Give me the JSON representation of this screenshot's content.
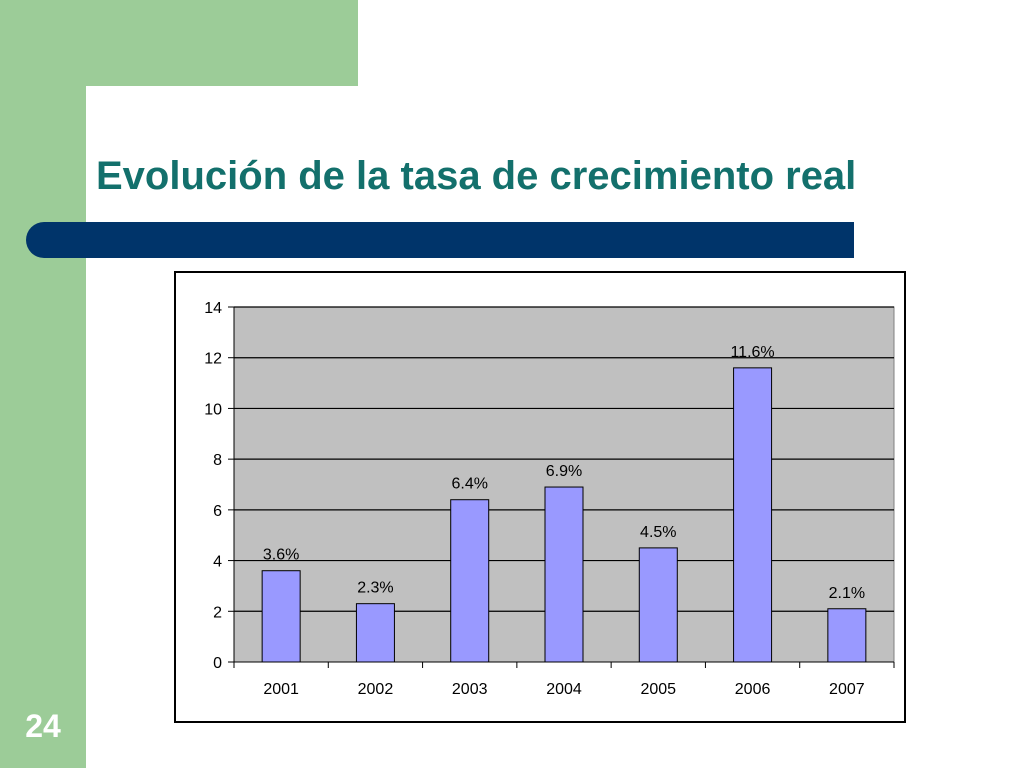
{
  "slide": {
    "title": "Evolución de la tasa de crecimiento real",
    "number": "24"
  },
  "chart_data": {
    "type": "bar",
    "categories": [
      "2001",
      "2002",
      "2003",
      "2004",
      "2005",
      "2006",
      "2007"
    ],
    "values": [
      3.6,
      2.3,
      6.4,
      6.9,
      4.5,
      11.6,
      2.1
    ],
    "data_labels": [
      "3.6%",
      "2.3%",
      "6.4%",
      "6.9%",
      "4.5%",
      "11.6%",
      "2.1%"
    ],
    "title": "",
    "xlabel": "",
    "ylabel": "",
    "ylim": [
      0,
      14
    ],
    "yticks": [
      0,
      2,
      4,
      6,
      8,
      10,
      12,
      14
    ],
    "grid": true,
    "legend": "none",
    "colors": {
      "bar_fill": "#9999ff",
      "bar_stroke": "#000000",
      "plot_background": "#c0c0c0",
      "gridline": "#000000"
    }
  },
  "colors": {
    "accent_green": "#9ccc98",
    "title_teal": "#13706c",
    "bar_navy": "#00346a"
  }
}
